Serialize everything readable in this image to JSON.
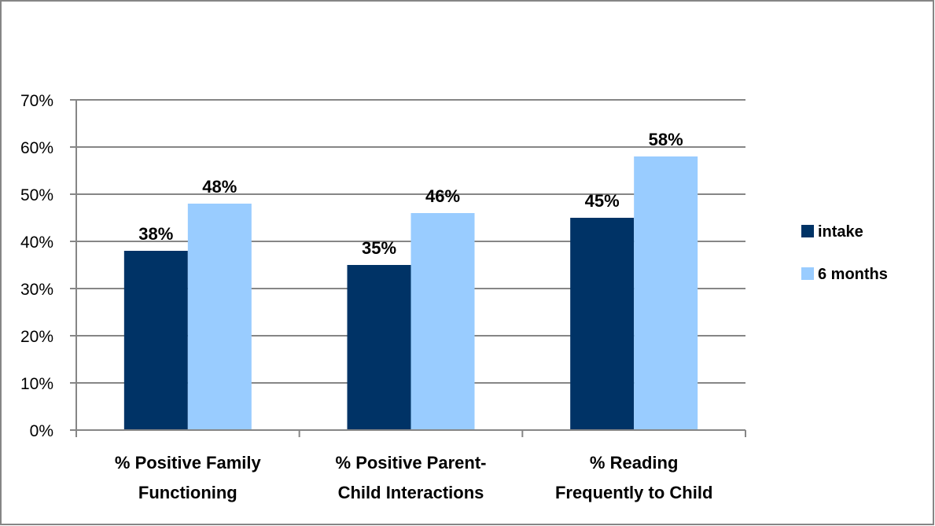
{
  "chart_data": {
    "type": "bar",
    "title": "",
    "xlabel": "",
    "ylabel": "",
    "categories": [
      [
        "% Positive Family",
        "Functioning"
      ],
      [
        "% Positive Parent-",
        "Child Interactions"
      ],
      [
        "% Reading",
        "Frequently to Child"
      ]
    ],
    "series": [
      {
        "name": "intake",
        "values": [
          38,
          35,
          45
        ],
        "labels": [
          "38%",
          "35%",
          "45%"
        ],
        "color": "#003366"
      },
      {
        "name": "6 months",
        "values": [
          48,
          46,
          58
        ],
        "labels": [
          "48%",
          "46%",
          "58%"
        ],
        "color": "#99CCFF"
      }
    ],
    "ylim": [
      0,
      70
    ],
    "yticks": [
      0,
      10,
      20,
      30,
      40,
      50,
      60,
      70
    ],
    "ytick_labels": [
      "0%",
      "10%",
      "20%",
      "30%",
      "40%",
      "50%",
      "60%",
      "70%"
    ],
    "grid": true,
    "legend_position": "right"
  },
  "colors": {
    "gridline": "#868686",
    "border": "#868686"
  }
}
